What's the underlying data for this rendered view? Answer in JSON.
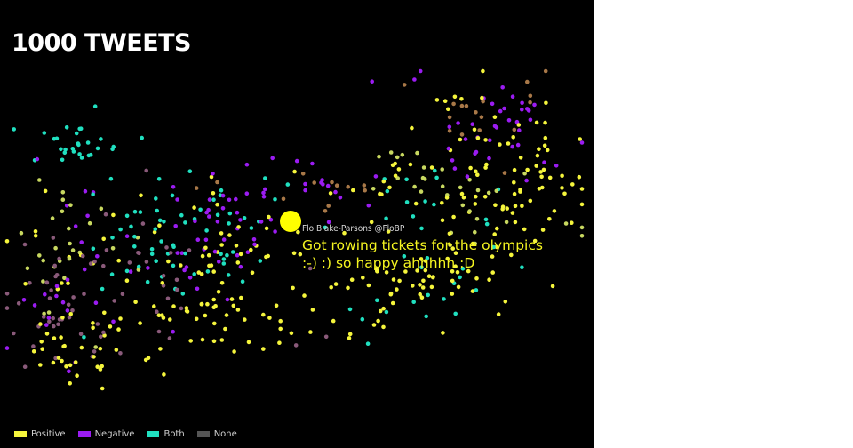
{
  "chart_data": {
    "type": "scatter",
    "title": "1000 TWEETS",
    "legend": {
      "placement": "bottom-left",
      "entries": [
        {
          "label": "Positive",
          "color": "#f5f53c"
        },
        {
          "label": "Negative",
          "color": "#9b1cf2"
        },
        {
          "label": "Both",
          "color": "#20e0c0"
        },
        {
          "label": "None",
          "color": "#555555"
        }
      ]
    },
    "highlight": {
      "author": "Flo Blake-Parsons @FloBP",
      "text": "Got rowing tickets for the olympics :-) :) so happy ahhhhh :D",
      "color": "#ffff00"
    },
    "mixed_colors": {
      "pos_neg": "#c8d860",
      "neg_none": "#8a5a7a",
      "both_none": "#a87848"
    }
  }
}
